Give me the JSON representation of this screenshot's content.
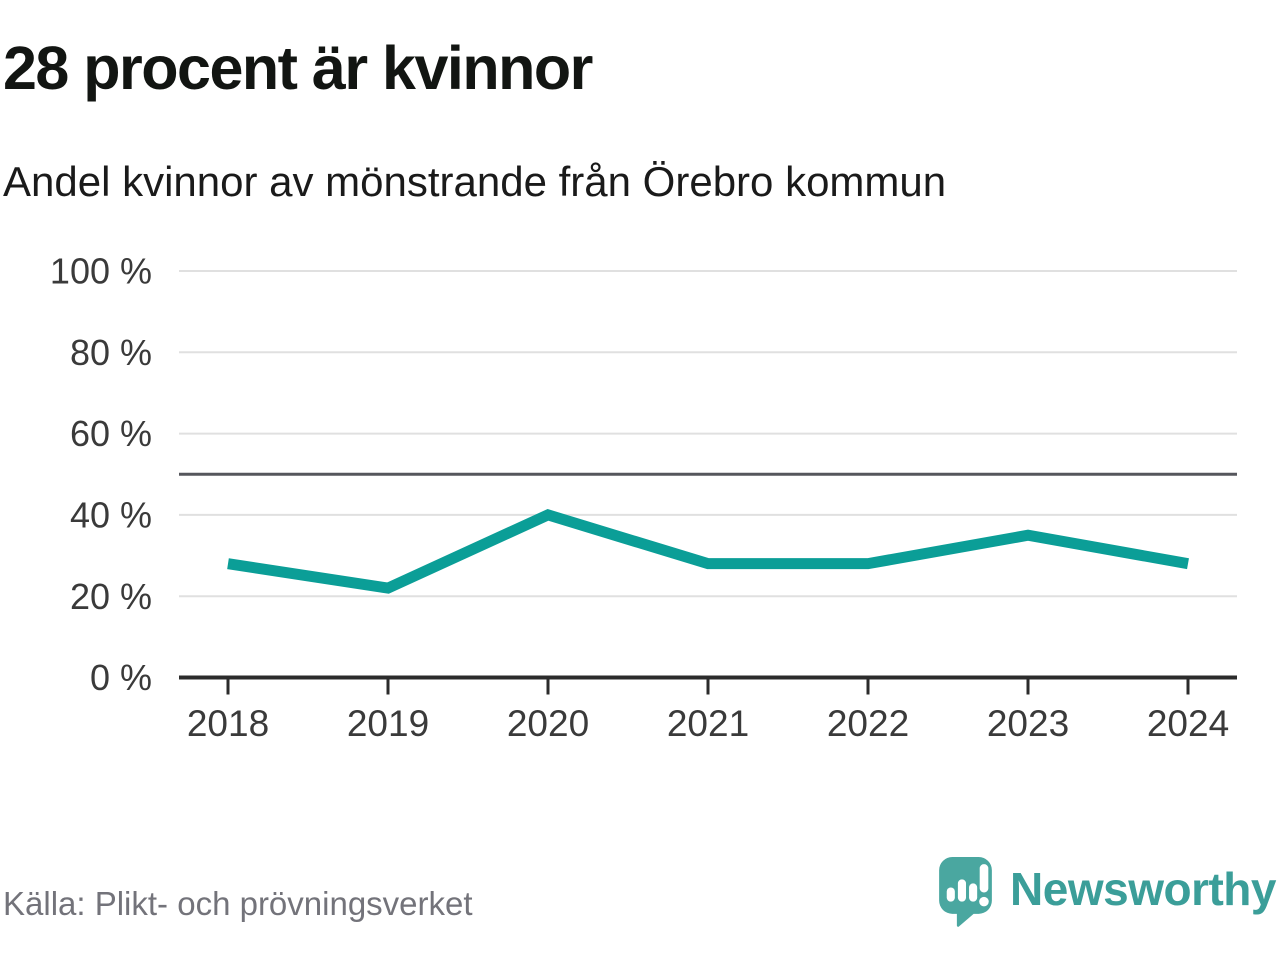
{
  "header": {
    "title": "28 procent är kvinnor",
    "subtitle": "Andel kvinnor av mönstrande från Örebro kommun"
  },
  "chart_data": {
    "type": "line",
    "categories": [
      "2018",
      "2019",
      "2020",
      "2021",
      "2022",
      "2023",
      "2024"
    ],
    "series": [
      {
        "name": "Andel kvinnor av mönstrande",
        "values": [
          28,
          22,
          40,
          28,
          28,
          35,
          28
        ]
      }
    ],
    "unit": "%",
    "title": "28 procent är kvinnor",
    "subtitle": "Andel kvinnor av mönstrande från Örebro kommun",
    "xlabel": "",
    "ylabel": "",
    "ylim": [
      0,
      100
    ],
    "yticks": [
      0,
      20,
      40,
      60,
      80,
      100
    ],
    "ytick_labels": [
      "0 %",
      "20 %",
      "40 %",
      "60 %",
      "80 %",
      "100 %"
    ],
    "reference_line": {
      "value": 50
    },
    "grid": "horizontal",
    "legend": "none",
    "colors": {
      "line": "#0b9e97",
      "axis": "#2b2b2b",
      "grid": "#e0e0e0",
      "reference": "#55565c",
      "tick_label": "#3a3a3a"
    }
  },
  "footer": {
    "source": "Källa: Plikt- och prövningsverket",
    "logo": {
      "text": "Newsworthy",
      "color": "#3b9e99",
      "bubble_color": "#4aa7a0",
      "icon": "newsworthy-speech-bubble-chart-icon"
    }
  }
}
